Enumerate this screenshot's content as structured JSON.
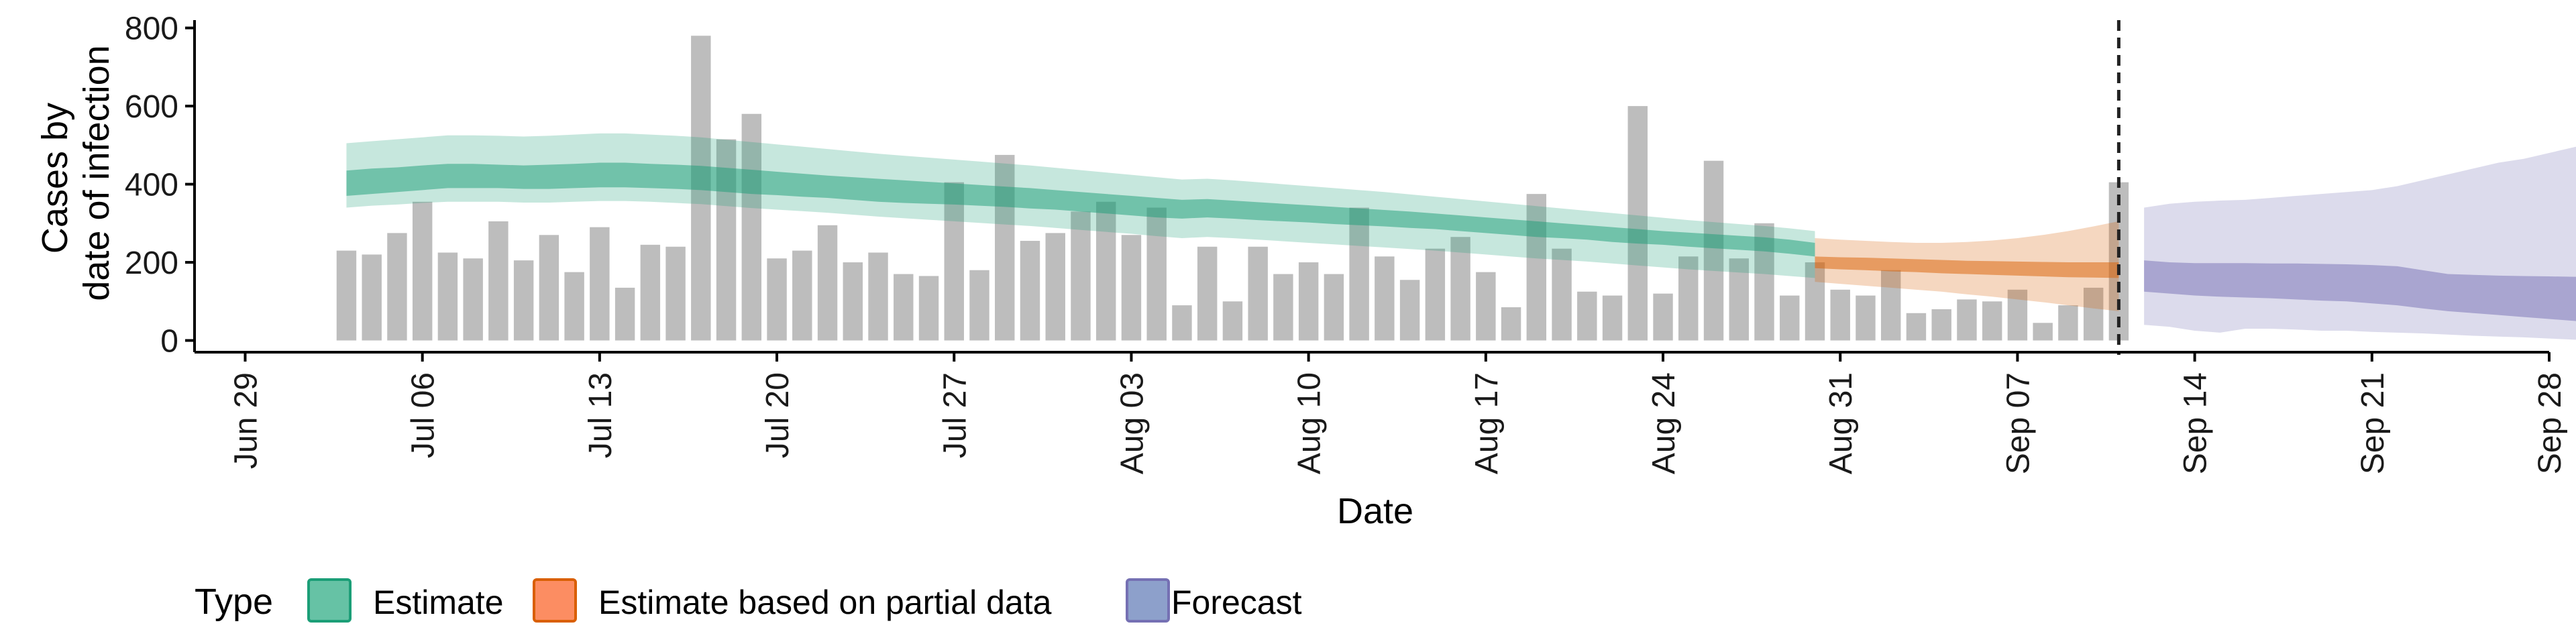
{
  "chart_data": {
    "type": "bar",
    "xlabel": "Date",
    "ylabel_lines": [
      "Cases by",
      "date of infection"
    ],
    "x_range": [
      "2020-06-27",
      "2020-09-28"
    ],
    "ylim": [
      -30,
      820
    ],
    "y_ticks": [
      0,
      200,
      400,
      600,
      800
    ],
    "x_ticks": [
      {
        "date": "2020-06-29",
        "label": "Jun 29"
      },
      {
        "date": "2020-07-06",
        "label": "Jul 06"
      },
      {
        "date": "2020-07-13",
        "label": "Jul 13"
      },
      {
        "date": "2020-07-20",
        "label": "Jul 20"
      },
      {
        "date": "2020-07-27",
        "label": "Jul 27"
      },
      {
        "date": "2020-08-03",
        "label": "Aug 03"
      },
      {
        "date": "2020-08-10",
        "label": "Aug 10"
      },
      {
        "date": "2020-08-17",
        "label": "Aug 17"
      },
      {
        "date": "2020-08-24",
        "label": "Aug 24"
      },
      {
        "date": "2020-08-31",
        "label": "Aug 31"
      },
      {
        "date": "2020-09-07",
        "label": "Sep 07"
      },
      {
        "date": "2020-09-14",
        "label": "Sep 14"
      },
      {
        "date": "2020-09-21",
        "label": "Sep 21"
      },
      {
        "date": "2020-09-28",
        "label": "Sep 28"
      }
    ],
    "grid": false,
    "reported_cases": {
      "start_date": "2020-07-03",
      "values": [
        230,
        220,
        275,
        355,
        225,
        210,
        305,
        205,
        270,
        175,
        290,
        135,
        245,
        240,
        780,
        515,
        580,
        210,
        230,
        295,
        200,
        225,
        170,
        165,
        405,
        180,
        475,
        255,
        275,
        330,
        355,
        270,
        340,
        90,
        240,
        100,
        240,
        170,
        200,
        170,
        340,
        215,
        155,
        235,
        265,
        175,
        85,
        375,
        235,
        125,
        115,
        600,
        120,
        215,
        460,
        210,
        300,
        115,
        200,
        130,
        115,
        180,
        70,
        80,
        105,
        100,
        130,
        45,
        90,
        135,
        405
      ]
    },
    "cutoff_date": "2020-09-11",
    "series": [
      {
        "name": "Estimate",
        "start_date": "2020-07-03",
        "inner_lower": [
          370,
          375,
          380,
          385,
          390,
          390,
          390,
          388,
          388,
          390,
          392,
          392,
          390,
          388,
          385,
          380,
          375,
          372,
          368,
          365,
          360,
          355,
          352,
          350,
          348,
          345,
          342,
          338,
          335,
          330,
          325,
          320,
          315,
          312,
          315,
          312,
          308,
          305,
          302,
          298,
          295,
          292,
          288,
          285,
          280,
          275,
          270,
          265,
          262,
          258,
          252,
          248,
          245,
          240,
          236,
          232,
          228,
          222,
          215
        ],
        "inner_upper": [
          435,
          440,
          443,
          448,
          452,
          452,
          450,
          448,
          450,
          452,
          455,
          455,
          452,
          450,
          447,
          442,
          437,
          432,
          427,
          422,
          418,
          414,
          410,
          406,
          402,
          398,
          394,
          390,
          385,
          380,
          375,
          370,
          365,
          360,
          362,
          358,
          354,
          350,
          346,
          342,
          338,
          334,
          330,
          325,
          320,
          315,
          310,
          305,
          300,
          295,
          290,
          285,
          280,
          276,
          272,
          268,
          264,
          258,
          250
        ],
        "outer_lower": [
          340,
          345,
          348,
          352,
          355,
          355,
          355,
          353,
          353,
          355,
          357,
          357,
          355,
          352,
          349,
          344,
          339,
          335,
          331,
          327,
          322,
          317,
          313,
          309,
          305,
          301,
          297,
          293,
          288,
          283,
          278,
          273,
          267,
          262,
          265,
          262,
          258,
          254,
          250,
          246,
          242,
          238,
          234,
          230,
          225,
          220,
          215,
          210,
          206,
          202,
          197,
          192,
          187,
          182,
          178,
          174,
          170,
          165,
          160
        ],
        "outer_upper": [
          505,
          510,
          515,
          520,
          525,
          525,
          524,
          522,
          524,
          527,
          530,
          530,
          527,
          524,
          520,
          514,
          508,
          502,
          496,
          490,
          484,
          478,
          473,
          468,
          463,
          458,
          453,
          448,
          442,
          436,
          430,
          424,
          418,
          412,
          414,
          410,
          405,
          400,
          395,
          390,
          385,
          380,
          374,
          368,
          362,
          356,
          350,
          344,
          338,
          332,
          326,
          320,
          314,
          308,
          303,
          298,
          293,
          287,
          280
        ]
      },
      {
        "name": "Estimate based on partial data",
        "start_date": "2020-08-30",
        "inner_lower": [
          185,
          182,
          180,
          177,
          175,
          172,
          170,
          168,
          166,
          164,
          162,
          161,
          160
        ],
        "inner_upper": [
          215,
          213,
          212,
          210,
          208,
          206,
          204,
          203,
          202,
          201,
          200,
          200,
          200
        ],
        "outer_lower": [
          150,
          145,
          140,
          135,
          130,
          125,
          118,
          112,
          105,
          98,
          90,
          82,
          75
        ],
        "outer_upper": [
          262,
          258,
          255,
          252,
          250,
          250,
          252,
          256,
          262,
          270,
          280,
          292,
          305
        ]
      },
      {
        "name": "Forecast",
        "start_date": "2020-09-12",
        "inner_lower": [
          125,
          120,
          115,
          112,
          110,
          108,
          105,
          102,
          100,
          95,
          90,
          82,
          75,
          70,
          65,
          60,
          55,
          50,
          45
        ],
        "inner_upper": [
          205,
          200,
          198,
          198,
          198,
          197,
          197,
          196,
          195,
          193,
          190,
          180,
          170,
          168,
          166,
          165,
          164,
          163,
          162
        ],
        "outer_lower": [
          40,
          35,
          25,
          20,
          30,
          30,
          28,
          25,
          25,
          22,
          20,
          18,
          15,
          12,
          10,
          8,
          5,
          2,
          0
        ],
        "outer_upper": [
          340,
          350,
          355,
          358,
          360,
          365,
          370,
          375,
          380,
          385,
          395,
          410,
          425,
          440,
          455,
          465,
          480,
          495,
          510
        ]
      }
    ],
    "legend": {
      "title": "Type",
      "entries": [
        "Estimate",
        "Estimate based on partial data",
        "Forecast"
      ],
      "position": "bottom"
    },
    "colors": {
      "bars": "#bdbdbd",
      "estimate_fill": "#1b9e77",
      "partial_fill": "#d95f02",
      "forecast_fill": "#7570b3",
      "legend_estimate": "#66c2a5",
      "legend_partial": "#fc8d62",
      "legend_forecast": "#8da0cb",
      "axis": "#000000",
      "cutoff_line": "#222222"
    }
  }
}
